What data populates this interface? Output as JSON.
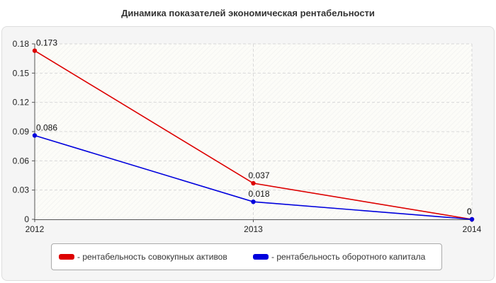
{
  "chart_data": {
    "type": "line",
    "title": "Динамика показателей экономическая рентабельности",
    "x": [
      "2012",
      "2013",
      "2014"
    ],
    "ylim": [
      0,
      0.18
    ],
    "yticks": [
      "0",
      "0.03",
      "0.06",
      "0.09",
      "0.12",
      "0.15",
      "0.18"
    ],
    "grid": true,
    "legend_position": "bottom",
    "series": [
      {
        "name": "- рентабельность совокупных активов",
        "color": "#dd0000",
        "values": [
          0.173,
          0.037,
          0
        ],
        "labels": [
          "0.173",
          "0.037",
          "0"
        ]
      },
      {
        "name": "- рентабельность оборотного капитала",
        "color": "#0000dd",
        "values": [
          0.086,
          0.018,
          0
        ],
        "labels": [
          "0.086",
          "0.018",
          "0"
        ]
      }
    ]
  }
}
